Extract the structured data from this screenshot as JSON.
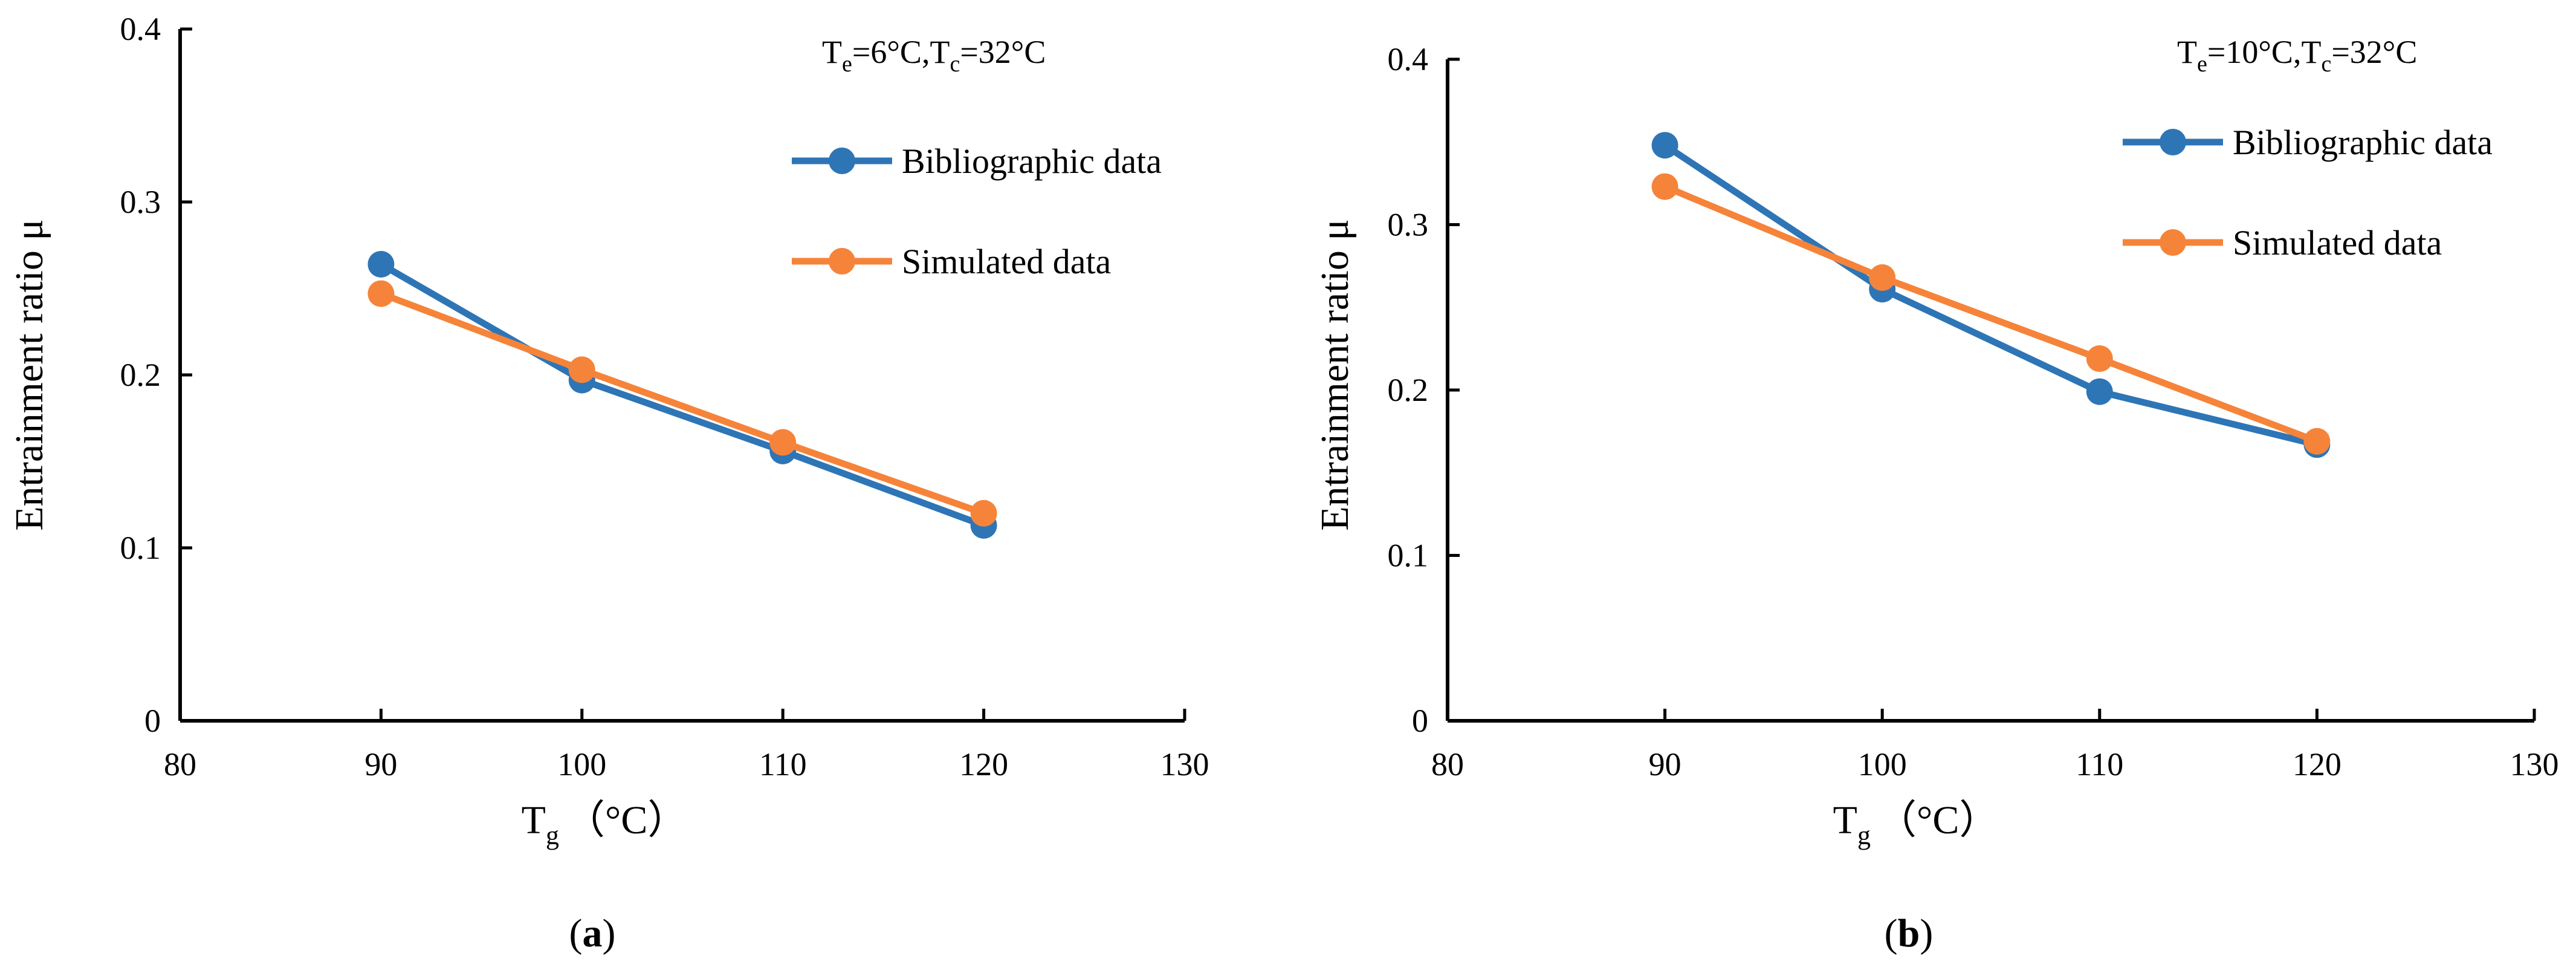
{
  "chart_data": [
    {
      "type": "line",
      "panel_label": "a",
      "condition": {
        "te_label": "T",
        "te_sub": "e",
        "te_value": "=6°C,",
        "tc_label": "T",
        "tc_sub": "c",
        "tc_value": "=32°C"
      },
      "xlabel": {
        "main": "T",
        "sub": "g",
        "unit": "（°C）"
      },
      "ylabel": "Entrainment ratio μ",
      "xlim": [
        80,
        130
      ],
      "ylim": [
        0,
        0.4
      ],
      "xticks": [
        "80",
        "90",
        "100",
        "110",
        "120",
        "130"
      ],
      "yticks": [
        "0",
        "0.1",
        "0.2",
        "0.3",
        "0.4"
      ],
      "legend_position": "top-right",
      "x": [
        90,
        100,
        110,
        120
      ],
      "series": [
        {
          "name": "Bibliographic data",
          "color": "#2E75B6",
          "values": [
            0.264,
            0.197,
            0.156,
            0.113
          ]
        },
        {
          "name": "Simulated data",
          "color": "#F5843A",
          "values": [
            0.247,
            0.203,
            0.161,
            0.12
          ]
        }
      ]
    },
    {
      "type": "line",
      "panel_label": "b",
      "condition": {
        "te_label": "T",
        "te_sub": "e",
        "te_value": "=10°C,",
        "tc_label": "T",
        "tc_sub": "c",
        "tc_value": "=32°C"
      },
      "xlabel": {
        "main": "T",
        "sub": "g",
        "unit": "（°C）"
      },
      "ylabel": "Entrainment ratio μ",
      "xlim": [
        80,
        130
      ],
      "ylim": [
        0,
        0.4
      ],
      "xticks": [
        "80",
        "90",
        "100",
        "110",
        "120",
        "130"
      ],
      "yticks": [
        "0",
        "0.1",
        "0.2",
        "0.3",
        "0.4"
      ],
      "legend_position": "top-right",
      "x": [
        90,
        100,
        110,
        120
      ],
      "series": [
        {
          "name": "Bibliographic data",
          "color": "#2E75B6",
          "values": [
            0.348,
            0.261,
            0.199,
            0.167
          ]
        },
        {
          "name": "Simulated data",
          "color": "#F5843A",
          "values": [
            0.323,
            0.268,
            0.219,
            0.169
          ]
        }
      ]
    }
  ]
}
